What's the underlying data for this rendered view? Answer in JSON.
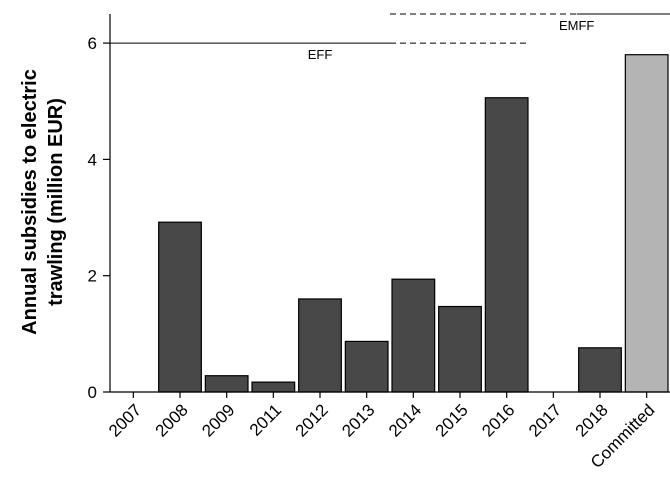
{
  "chart_data": {
    "type": "bar",
    "categories": [
      "2007",
      "2008",
      "2009",
      "2011",
      "2012",
      "2013",
      "2014",
      "2015",
      "2016",
      "2017",
      "2018",
      "Committed"
    ],
    "values": [
      0,
      2.92,
      0.28,
      0.17,
      1.6,
      0.87,
      1.94,
      1.47,
      5.06,
      0,
      0.76,
      5.8
    ],
    "bar_colors": [
      "#484848",
      "#484848",
      "#484848",
      "#484848",
      "#484848",
      "#484848",
      "#484848",
      "#484848",
      "#484848",
      "#484848",
      "#484848",
      "#b4b4b4"
    ],
    "ylabel_lines": [
      "Annual subsidies to electric",
      "trawling (million EUR)"
    ],
    "ylim": [
      0,
      6.5
    ],
    "yticks": [
      0,
      2,
      4,
      6
    ],
    "grid": false,
    "annotations": [
      {
        "label": "EFF",
        "y": 6,
        "solid_from": "2007",
        "solid_to": "2013",
        "dashed_from": "2014",
        "dashed_to": "2016"
      },
      {
        "label": "EMFF",
        "y": 6.5,
        "dashed_from": "2014",
        "dashed_to": "2017",
        "solid_from": "2018",
        "solid_to": "Committed"
      }
    ]
  }
}
